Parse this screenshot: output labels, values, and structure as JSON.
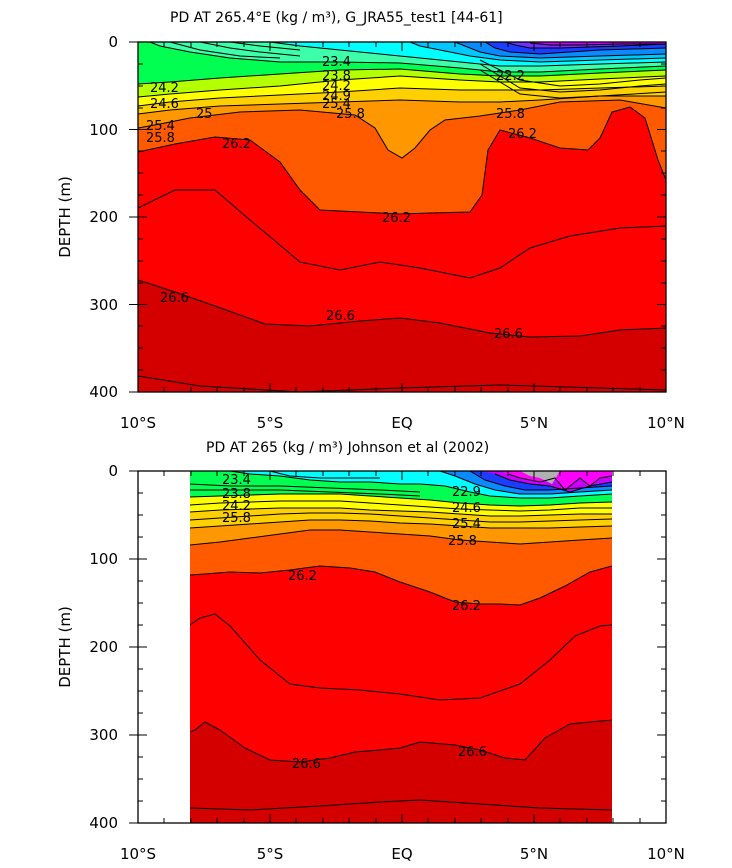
{
  "chart_data": [
    {
      "type": "contour",
      "title": "PD AT 265.4°E (kg / m³), G_JRA55_test1 [44-61]",
      "ylabel": "DEPTH (m)",
      "xlabel": "",
      "x_ticks": [
        "10°S",
        "5°S",
        "EQ",
        "5°N",
        "10°N"
      ],
      "y_ticks": [
        "0",
        "100",
        "200",
        "300",
        "400"
      ],
      "xlim": [
        -10,
        10
      ],
      "ylim": [
        400,
        0
      ],
      "y_inverted": true,
      "data_extent": [
        -10,
        10
      ],
      "fill_colors": [
        "#ff00ff",
        "#c800ff",
        "#7030ff",
        "#1a3dff",
        "#0a8aff",
        "#00c8ff",
        "#00ffff",
        "#3dffaa",
        "#00ff50",
        "#b4ff00",
        "#ffff00",
        "#ffd000",
        "#ff9800",
        "#ff5a00",
        "#ff0000",
        "#d40000"
      ],
      "contour_labels": [
        "23.4",
        "23.8",
        "22.2",
        "24.2",
        "24.2",
        "24.6",
        "24.9",
        "25",
        "25.4",
        "25.4",
        "25.8",
        "25.8",
        "25.8",
        "26.2",
        "26.2",
        "26.2",
        "26.6",
        "26.6",
        "26.6"
      ],
      "isopycnal_depth_profiles": [
        {
          "level": "24.2",
          "x": [
            -10,
            -7,
            -5,
            -3,
            0,
            3,
            5,
            10
          ],
          "depth": [
            28,
            42,
            55,
            62,
            66,
            68,
            67,
            65
          ]
        },
        {
          "level": "25.4",
          "x": [
            -10,
            -7,
            -5,
            -3,
            0,
            3,
            5,
            10
          ],
          "depth": [
            92,
            90,
            84,
            76,
            74,
            76,
            82,
            88
          ]
        },
        {
          "level": "25.8",
          "x": [
            -10,
            -7,
            -5,
            -3,
            0,
            3,
            5,
            10
          ],
          "depth": [
            105,
            95,
            87,
            82,
            85,
            88,
            90,
            88
          ]
        },
        {
          "level": "26.2",
          "x": [
            -10,
            -7,
            -5,
            -3,
            -1,
            0,
            1,
            3,
            4,
            5,
            6,
            7.5,
            8.5,
            10
          ],
          "depth": [
            152,
            138,
            145,
            190,
            200,
            200,
            198,
            190,
            120,
            110,
            122,
            110,
            108,
            180
          ]
        },
        {
          "level": "26.6",
          "x": [
            -10,
            -7,
            -5,
            -3,
            0,
            3,
            5,
            10
          ],
          "depth": [
            280,
            300,
            320,
            325,
            318,
            333,
            337,
            330
          ]
        }
      ]
    },
    {
      "type": "contour",
      "title": "PD AT 265 (kg / m³) Johnson et al (2002)",
      "ylabel": "DEPTH (m)",
      "xlabel": "",
      "x_ticks": [
        "10°S",
        "5°S",
        "EQ",
        "5°N",
        "10°N"
      ],
      "y_ticks": [
        "0",
        "100",
        "200",
        "300",
        "400"
      ],
      "xlim": [
        -10,
        10
      ],
      "ylim": [
        400,
        0
      ],
      "y_inverted": true,
      "data_extent": [
        -8,
        8
      ],
      "fill_colors": [
        "#b0b0b0",
        "#ff00ff",
        "#c800ff",
        "#1a3dff",
        "#0a8aff",
        "#00ffff",
        "#00ff50",
        "#ffff00",
        "#ffd000",
        "#ff9800",
        "#ff5a00",
        "#ff0000",
        "#d40000"
      ],
      "contour_labels": [
        "23.4",
        "23.8",
        "22.9",
        "24.2",
        "24.6",
        "25.4",
        "25.8",
        "25.8",
        "26.2",
        "26.2",
        "26.6",
        "26.6"
      ],
      "isopycnal_depth_profiles": [
        {
          "level": "24.2",
          "x": [
            -8,
            -6,
            -4,
            -2,
            0,
            2,
            4,
            6,
            8
          ],
          "depth": [
            24,
            32,
            40,
            44,
            48,
            52,
            50,
            40,
            30
          ]
        },
        {
          "level": "25.8",
          "x": [
            -8,
            -6,
            -4,
            -2,
            0,
            2,
            4,
            6,
            8
          ],
          "depth": [
            60,
            62,
            66,
            68,
            70,
            74,
            72,
            70,
            70
          ]
        },
        {
          "level": "26.2",
          "x": [
            -8,
            -6,
            -4,
            -2,
            0,
            2,
            4,
            6,
            8
          ],
          "depth": [
            110,
            105,
            100,
            108,
            118,
            128,
            140,
            120,
            115
          ]
        },
        {
          "level": "26.6",
          "x": [
            -8,
            -6,
            -4,
            -2,
            0,
            2,
            4,
            6,
            8
          ],
          "depth": [
            295,
            312,
            325,
            322,
            318,
            318,
            330,
            308,
            285
          ]
        }
      ]
    }
  ]
}
